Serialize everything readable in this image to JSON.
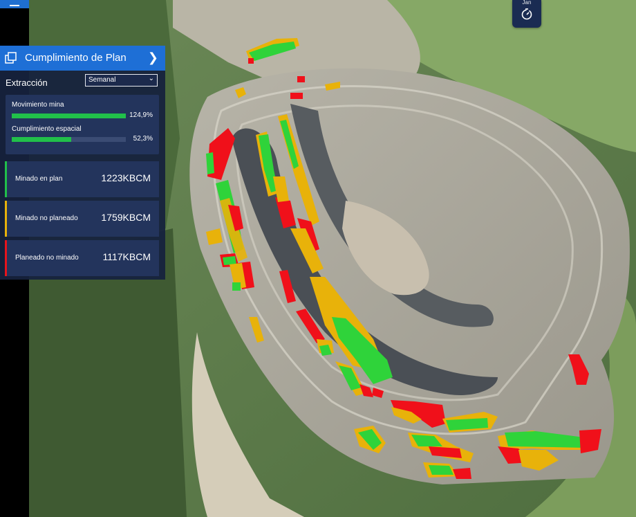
{
  "app": {
    "menu_icon": "hamburger-icon"
  },
  "timer": {
    "label": "Jan",
    "icon": "timer-icon"
  },
  "panel": {
    "title": "Cumplimiento de Plan",
    "header_icon": "layers-icon",
    "collapse_icon": "chevron-right-icon",
    "section_label": "Extracción",
    "period_select": {
      "value": "Semanal"
    },
    "progress": [
      {
        "label": "Movimiento mina",
        "value_text": "124,9%",
        "fill_fraction": 1.0,
        "color": "#21c04a"
      },
      {
        "label": "Cumplimiento espacial",
        "value_text": "52,3%",
        "fill_fraction": 0.523,
        "color": "#21c04a"
      }
    ],
    "stats": [
      {
        "label": "Minado en plan",
        "value": "1223KBCM",
        "color": "#21c04a"
      },
      {
        "label": "Minado no planeado",
        "value": "1759KBCM",
        "color": "#e8b20a"
      },
      {
        "label": "Planeado no minado",
        "value": "1117KBCM",
        "color": "#e8141c"
      }
    ]
  },
  "legend_colors": {
    "green": "#2fd33a",
    "yellow": "#e8b20a",
    "red": "#f0101a"
  }
}
